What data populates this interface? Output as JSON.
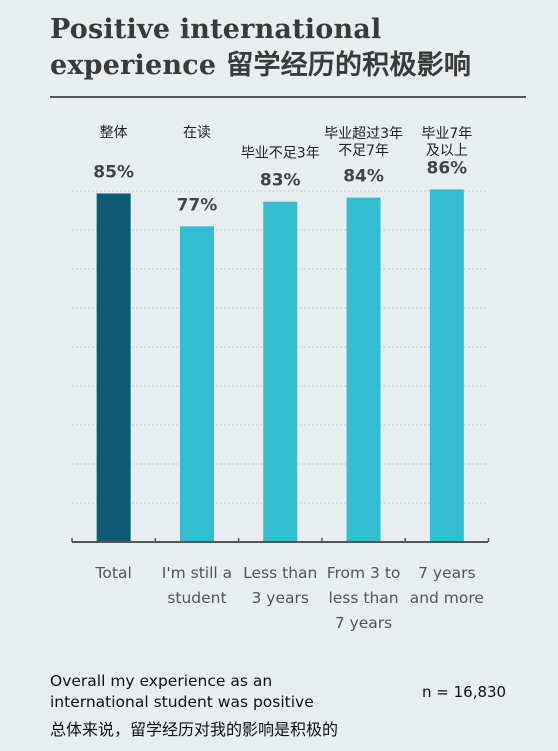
{
  "title": {
    "en_line1": "Positive international",
    "en_line2": "experience",
    "zh": "留学经历的积极影响"
  },
  "chart_data": {
    "type": "bar",
    "categories": [
      "Total",
      "I'm still a student",
      "Less than 3 years",
      "From 3 to less than 7 years",
      "7 years and more"
    ],
    "categories_zh": [
      "整体",
      "在读",
      "毕业不足3年",
      "毕业超过3年不足7年",
      "毕业7年及以上"
    ],
    "category_lines_en": [
      [
        "Total"
      ],
      [
        "I'm still a",
        "student"
      ],
      [
        "Less than",
        "3 years"
      ],
      [
        "From 3 to",
        "less than",
        "7 years"
      ],
      [
        "7 years",
        "and more"
      ]
    ],
    "category_lines_zh": [
      [
        "整体"
      ],
      [
        "在读"
      ],
      [
        "毕业不足3年"
      ],
      [
        "毕业超过3年",
        "不足7年"
      ],
      [
        "毕业7年",
        "及以上"
      ]
    ],
    "values": [
      85,
      77,
      83,
      84,
      86
    ],
    "value_labels": [
      "85%",
      "77%",
      "83%",
      "84%",
      "86%"
    ],
    "colors": [
      "#0c5a73",
      "#33bdd0",
      "#33bdd0",
      "#33bdd0",
      "#33bdd0"
    ],
    "ylim": [
      0,
      100
    ],
    "grid": true
  },
  "footer": {
    "description_en": "Overall my experience as an international student was positive",
    "description_zh": "总体来说，留学经历对我的影响是积极的",
    "n_label": "n = 16,830"
  }
}
